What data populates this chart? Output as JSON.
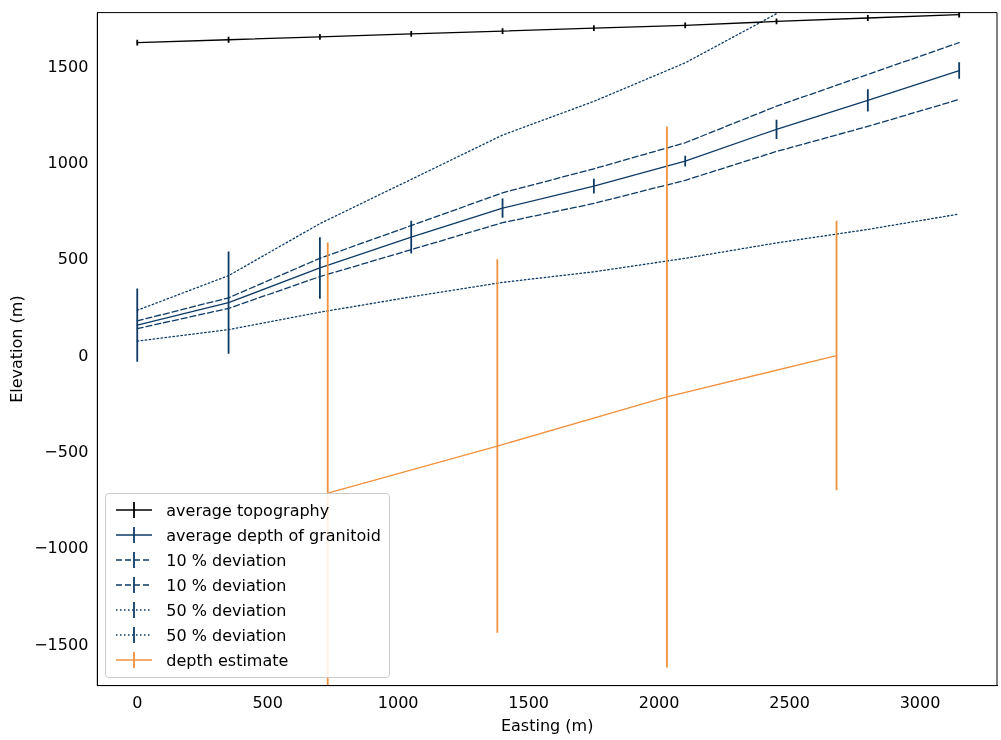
{
  "chart_data": {
    "type": "line",
    "xlabel": "Easting (m)",
    "ylabel": "Elevation (m)",
    "xlim": [
      -153,
      3295
    ],
    "xticks": [
      0,
      500,
      1000,
      1500,
      2000,
      2500,
      3000
    ],
    "ylim": [
      -1709,
      1786
    ],
    "yticks": [
      -1500,
      -1000,
      -500,
      0,
      500,
      1000,
      1500
    ],
    "grid": false,
    "legend": "bottom left",
    "marker": "none",
    "series": [
      {
        "name": "average topography",
        "color": "#000000",
        "line_style": "solid",
        "x": [
          0,
          350,
          700,
          1050,
          1400,
          1750,
          2100,
          2450,
          2800,
          3150
        ],
        "values": [
          1630,
          1645,
          1660,
          1675,
          1690,
          1705,
          1720,
          1740,
          1758,
          1775
        ],
        "errors": [
          15,
          15,
          15,
          15,
          15,
          15,
          15,
          15,
          15,
          15
        ]
      },
      {
        "name": "average depth of granitoid",
        "color": "#0d3b66",
        "line_style": "solid",
        "x": [
          0,
          350,
          700,
          1050,
          1400,
          1750,
          2100,
          2450,
          2800,
          3150
        ],
        "values": [
          163,
          280,
          460,
          620,
          770,
          885,
          1015,
          1180,
          1330,
          1485
        ],
        "errors": [
          190,
          265,
          160,
          85,
          50,
          38,
          28,
          50,
          58,
          43
        ]
      },
      {
        "name": "10 % deviation",
        "color": "#0d3b66",
        "line_style": "dashed",
        "x": [
          0,
          350,
          700,
          1050,
          1400,
          1750,
          2100,
          2450,
          2800,
          3150
        ],
        "values": [
          185,
          305,
          510,
          680,
          850,
          975,
          1110,
          1300,
          1465,
          1630
        ]
      },
      {
        "name": "10 % deviation",
        "color": "#0d3b66",
        "line_style": "dashed",
        "x": [
          0,
          350,
          700,
          1050,
          1400,
          1750,
          2100,
          2450,
          2800,
          3150
        ],
        "values": [
          145,
          250,
          415,
          555,
          695,
          795,
          915,
          1065,
          1195,
          1335
        ]
      },
      {
        "name": "50 % deviation",
        "color": "#0d3b66",
        "line_style": "dotted",
        "x": [
          0,
          350,
          700,
          1050,
          1400,
          1750,
          2100,
          2450
        ],
        "values": [
          240,
          420,
          690,
          920,
          1150,
          1325,
          1525,
          1780
        ]
      },
      {
        "name": "50 % deviation",
        "color": "#0d3b66",
        "line_style": "dotted",
        "x": [
          0,
          350,
          700,
          1050,
          1400,
          1750,
          2100,
          2450,
          2800,
          3150
        ],
        "values": [
          80,
          140,
          230,
          310,
          385,
          440,
          510,
          590,
          660,
          740
        ]
      },
      {
        "name": "depth estimate",
        "color": "#f0913f",
        "line_style": "solid",
        "x": [
          730,
          1380,
          2030,
          2680
        ],
        "values": [
          -710,
          -465,
          -210,
          5
        ],
        "errors": [
          [
            -1709,
            592
          ],
          970,
          1405,
          700
        ]
      }
    ]
  }
}
